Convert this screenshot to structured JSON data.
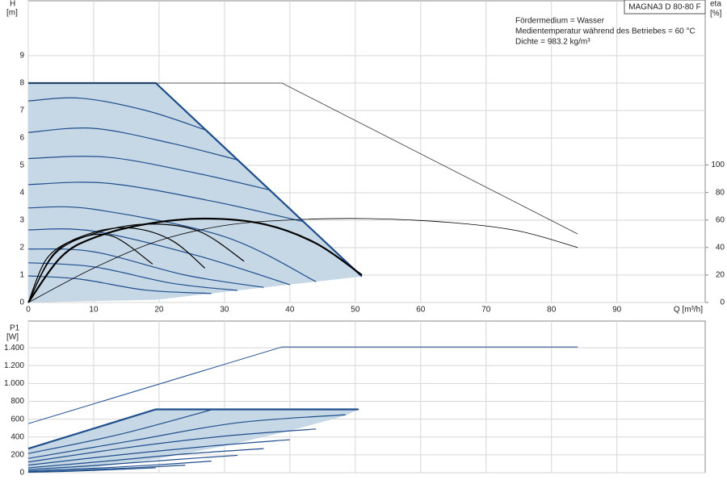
{
  "chart_data": [
    {
      "type": "line",
      "y_label": "H",
      "y_unit": "[m]",
      "y2_label": "eta",
      "y2_unit": "[%]",
      "x_label": "Q [m³/h]",
      "product": "MAGNA3 D 80-80 F",
      "annotations": [
        "Fördermedium = Wasser",
        "Medientemperatur während des Betriebes = 60 °C",
        "Dichte = 983.2 kg/m³"
      ],
      "xlim": [
        0,
        103.5
      ],
      "xticks": [
        0,
        10,
        20,
        30,
        40,
        50,
        60,
        70,
        80,
        90
      ],
      "xtick_labels": true,
      "ylim": [
        0,
        11
      ],
      "yticks": [
        0,
        1,
        2,
        3,
        4,
        5,
        6,
        7,
        8,
        9
      ],
      "y2lim": [
        0,
        219.4
      ],
      "y2ticks": [
        0,
        20,
        40,
        60,
        80,
        100
      ],
      "grid": true,
      "series": [
        {
          "color": "#c6d7e5",
          "fill": true,
          "smooth": false,
          "width": 0,
          "x": [
            0,
            19.5,
            51,
            19.5,
            0
          ],
          "values": [
            8,
            8,
            0.95,
            0.1,
            0
          ]
        },
        {
          "color": "#1f4e8c",
          "smooth": true,
          "width": 1.2,
          "x": [
            0,
            8,
            18,
            27
          ],
          "values": [
            7.35,
            7.45,
            7.0,
            6.3
          ]
        },
        {
          "color": "#1f4e8c",
          "smooth": true,
          "width": 1.2,
          "x": [
            0,
            10,
            22,
            32
          ],
          "values": [
            6.2,
            6.35,
            5.8,
            5.2
          ]
        },
        {
          "color": "#1f4e8c",
          "smooth": true,
          "width": 1.2,
          "x": [
            0,
            12,
            26,
            37
          ],
          "values": [
            5.25,
            5.3,
            4.7,
            4.1
          ]
        },
        {
          "color": "#1f4e8c",
          "smooth": true,
          "width": 1.2,
          "x": [
            0,
            12,
            28,
            42
          ],
          "values": [
            4.3,
            4.35,
            3.7,
            2.95
          ]
        },
        {
          "color": "#1f4e8c",
          "smooth": true,
          "width": 1.2,
          "x": [
            0,
            10,
            30,
            44
          ],
          "values": [
            3.45,
            3.4,
            2.4,
            0.76
          ]
        },
        {
          "color": "#1f4e8c",
          "smooth": true,
          "width": 1.2,
          "x": [
            0,
            10,
            26,
            40
          ],
          "values": [
            2.65,
            2.6,
            1.7,
            0.65
          ]
        },
        {
          "color": "#1f4e8c",
          "smooth": true,
          "width": 1.2,
          "x": [
            0,
            10,
            24,
            36
          ],
          "values": [
            1.95,
            1.85,
            1.0,
            0.55
          ]
        },
        {
          "color": "#1f4e8c",
          "smooth": true,
          "width": 1.2,
          "x": [
            0,
            10,
            22,
            32
          ],
          "values": [
            1.45,
            1.3,
            0.7,
            0.44
          ]
        },
        {
          "color": "#1f4e8c",
          "smooth": true,
          "width": 1.2,
          "x": [
            0,
            8,
            18,
            28
          ],
          "values": [
            0.97,
            0.85,
            0.45,
            0.33
          ]
        },
        {
          "color": "#1f4e8c",
          "smooth": false,
          "width": 2.2,
          "x": [
            0,
            19.5,
            51
          ],
          "values": [
            8,
            8,
            0.95
          ]
        },
        {
          "color": "#333333",
          "smooth": false,
          "width": 0.8,
          "x": [
            0,
            38.8,
            84
          ],
          "values": [
            8,
            8,
            2.5
          ]
        },
        {
          "color": "#000000",
          "axis": "y2",
          "smooth": true,
          "width": 0.8,
          "x": [
            0,
            10,
            20,
            30,
            40,
            52,
            65,
            75,
            84
          ],
          "values": [
            0,
            25,
            45,
            56,
            60,
            61,
            58,
            52,
            40
          ]
        },
        {
          "color": "#000000",
          "axis": "y2",
          "smooth": true,
          "width": 1.2,
          "x": [
            0,
            3,
            8,
            13,
            19
          ],
          "values": [
            0,
            33,
            47,
            48,
            28
          ]
        },
        {
          "color": "#000000",
          "axis": "y2",
          "smooth": true,
          "width": 1.2,
          "x": [
            0,
            4,
            10,
            16,
            22,
            27
          ],
          "values": [
            0,
            36,
            51,
            54,
            45,
            25
          ]
        },
        {
          "color": "#000000",
          "axis": "y2",
          "smooth": true,
          "width": 1.2,
          "x": [
            0,
            4,
            10,
            18,
            26,
            33
          ],
          "values": [
            0,
            35,
            50,
            57,
            52,
            30
          ]
        },
        {
          "color": "#000000",
          "axis": "y2",
          "smooth": true,
          "width": 2.2,
          "x": [
            0,
            5,
            10,
            18,
            27,
            36,
            44,
            51
          ],
          "values": [
            0,
            33,
            47,
            57,
            61,
            57,
            43,
            20
          ]
        }
      ]
    },
    {
      "type": "line",
      "y_label": "P1",
      "y_unit": "[W]",
      "xlim": [
        0,
        103.5
      ],
      "xticks": [
        0,
        10,
        20,
        30,
        40,
        50,
        60,
        70,
        80,
        90
      ],
      "xtick_labels": false,
      "ylim": [
        0,
        1700
      ],
      "yticks": [
        0,
        200,
        400,
        600,
        800,
        {
          "value": 1000,
          "label": "1.000"
        },
        {
          "value": 1200,
          "label": "1.200"
        },
        {
          "value": 1400,
          "label": "1.400"
        }
      ],
      "grid": true,
      "series": [
        {
          "color": "#c6d7e5",
          "fill": true,
          "smooth": false,
          "width": 0,
          "x": [
            0,
            19.5,
            50.5,
            48.5,
            40,
            30,
            19.5,
            10,
            0
          ],
          "values": [
            270,
            710,
            710,
            640,
            470,
            300,
            150,
            60,
            10
          ]
        },
        {
          "color": "#1f4e8c",
          "smooth": true,
          "width": 1.2,
          "x": [
            0,
            14,
            28
          ],
          "values": [
            215,
            430,
            705
          ]
        },
        {
          "color": "#1f4e8c",
          "smooth": true,
          "width": 1.2,
          "x": [
            0,
            16,
            32,
            48.5
          ],
          "values": [
            160,
            360,
            560,
            650
          ]
        },
        {
          "color": "#1f4e8c",
          "smooth": true,
          "width": 1.2,
          "x": [
            0,
            15,
            30,
            44
          ],
          "values": [
            120,
            280,
            410,
            490
          ]
        },
        {
          "color": "#1f4e8c",
          "smooth": true,
          "width": 1.2,
          "x": [
            0,
            14,
            28,
            40
          ],
          "values": [
            85,
            200,
            300,
            370
          ]
        },
        {
          "color": "#1f4e8c",
          "smooth": true,
          "width": 1.2,
          "x": [
            0,
            12,
            24,
            36
          ],
          "values": [
            55,
            130,
            210,
            270
          ]
        },
        {
          "color": "#1f4e8c",
          "smooth": true,
          "width": 1.2,
          "x": [
            0,
            11,
            22,
            32
          ],
          "values": [
            35,
            85,
            145,
            195
          ]
        },
        {
          "color": "#1f4e8c",
          "smooth": true,
          "width": 1.2,
          "x": [
            0,
            10,
            20,
            28
          ],
          "values": [
            20,
            50,
            90,
            130
          ]
        },
        {
          "color": "#1f4e8c",
          "smooth": true,
          "width": 1.2,
          "x": [
            0,
            8,
            16,
            24
          ],
          "values": [
            10,
            30,
            55,
            85
          ]
        },
        {
          "color": "#1f4e8c",
          "smooth": true,
          "width": 1.2,
          "x": [
            0,
            8,
            19.5
          ],
          "values": [
            5,
            20,
            55
          ]
        },
        {
          "color": "#1f4e8c",
          "smooth": false,
          "width": 2.2,
          "x": [
            0,
            19.5,
            50.5
          ],
          "values": [
            270,
            710,
            710
          ]
        },
        {
          "color": "#1f4e8c",
          "smooth": false,
          "width": 1,
          "x": [
            0,
            38.8,
            84
          ],
          "values": [
            550,
            1410,
            1410
          ]
        }
      ]
    }
  ]
}
